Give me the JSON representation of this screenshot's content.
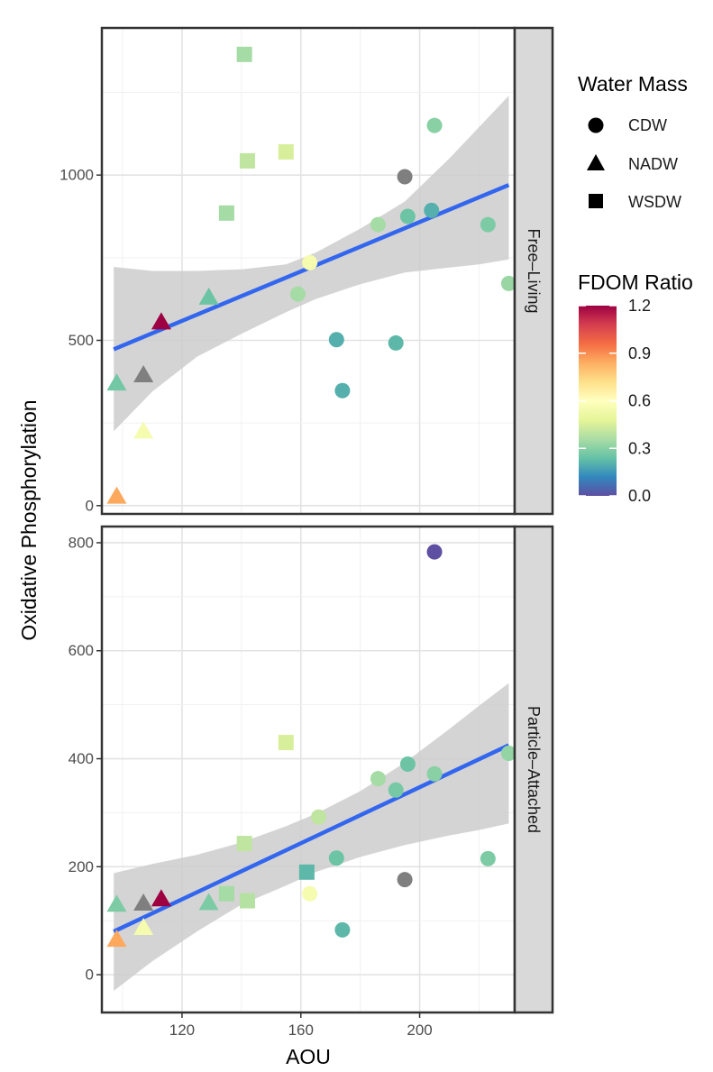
{
  "chart_data": {
    "type": "scatter",
    "xlabel": "AOU",
    "ylabel": "Oxidative Phosphorylation",
    "xlim": [
      93,
      232
    ],
    "x_ticks": [
      120,
      160,
      200
    ],
    "x_tick_labels": [
      "120",
      "160",
      "200"
    ],
    "fit_color": "#3366ee",
    "band_color": "#cccccc",
    "panels": [
      {
        "name": "Free–Living",
        "ylim": [
          -25,
          1445
        ],
        "y_ticks": [
          0,
          500,
          1000
        ],
        "y_tick_labels": [
          "0",
          "500",
          "1000"
        ],
        "fit": {
          "x": [
            97,
            230
          ],
          "y": [
            473,
            970
          ]
        },
        "band": {
          "x": [
            97,
            110,
            125,
            140,
            155,
            165,
            180,
            195,
            210,
            220,
            230
          ],
          "lower": [
            225,
            345,
            450,
            520,
            585,
            625,
            670,
            705,
            720,
            730,
            745
          ],
          "upper": [
            722,
            710,
            710,
            715,
            730,
            765,
            838,
            920,
            1050,
            1145,
            1240
          ]
        },
        "points": [
          {
            "x": 141,
            "y": 1365,
            "shape": "WSDW",
            "fdom": 0.35
          },
          {
            "x": 142,
            "y": 1043,
            "shape": "WSDW",
            "fdom": 0.4
          },
          {
            "x": 155,
            "y": 1070,
            "shape": "WSDW",
            "fdom": 0.45
          },
          {
            "x": 135,
            "y": 885,
            "shape": "WSDW",
            "fdom": 0.35
          },
          {
            "x": 205,
            "y": 1150,
            "shape": "CDW",
            "fdom": 0.3
          },
          {
            "x": 195,
            "y": 995,
            "shape": "CDW",
            "fdom": null
          },
          {
            "x": 204,
            "y": 893,
            "shape": "CDW",
            "fdom": 0.2
          },
          {
            "x": 196,
            "y": 875,
            "shape": "CDW",
            "fdom": 0.25
          },
          {
            "x": 186,
            "y": 850,
            "shape": "CDW",
            "fdom": 0.35
          },
          {
            "x": 223,
            "y": 850,
            "shape": "CDW",
            "fdom": 0.28
          },
          {
            "x": 230,
            "y": 672,
            "shape": "CDW",
            "fdom": 0.33
          },
          {
            "x": 163,
            "y": 735,
            "shape": "CDW",
            "fdom": 0.55
          },
          {
            "x": 159,
            "y": 640,
            "shape": "CDW",
            "fdom": 0.35
          },
          {
            "x": 172,
            "y": 502,
            "shape": "CDW",
            "fdom": 0.2
          },
          {
            "x": 192,
            "y": 492,
            "shape": "CDW",
            "fdom": 0.22
          },
          {
            "x": 174,
            "y": 348,
            "shape": "CDW",
            "fdom": 0.2
          },
          {
            "x": 129,
            "y": 630,
            "shape": "NADW",
            "fdom": 0.25
          },
          {
            "x": 113,
            "y": 555,
            "shape": "NADW",
            "fdom": 1.2
          },
          {
            "x": 107,
            "y": 395,
            "shape": "NADW",
            "fdom": null
          },
          {
            "x": 98,
            "y": 370,
            "shape": "NADW",
            "fdom": 0.26
          },
          {
            "x": 107,
            "y": 225,
            "shape": "NADW",
            "fdom": 0.55
          },
          {
            "x": 98,
            "y": 28,
            "shape": "NADW",
            "fdom": 0.85
          }
        ]
      },
      {
        "name": "Particle–Attached",
        "ylim": [
          -70,
          830
        ],
        "y_ticks": [
          0,
          200,
          400,
          600,
          800
        ],
        "y_tick_labels": [
          "0",
          "200",
          "400",
          "600",
          "800"
        ],
        "fit": {
          "x": [
            97,
            230
          ],
          "y": [
            80,
            425
          ]
        },
        "band": {
          "x": [
            97,
            110,
            125,
            140,
            155,
            165,
            180,
            195,
            210,
            220,
            230
          ],
          "lower": [
            -30,
            25,
            80,
            130,
            165,
            190,
            218,
            240,
            258,
            268,
            280
          ],
          "upper": [
            188,
            205,
            222,
            245,
            275,
            298,
            340,
            393,
            455,
            498,
            540
          ]
        },
        "points": [
          {
            "x": 205,
            "y": 783,
            "shape": "CDW",
            "fdom": 0.0
          },
          {
            "x": 155,
            "y": 430,
            "shape": "WSDW",
            "fdom": 0.45
          },
          {
            "x": 230,
            "y": 410,
            "shape": "CDW",
            "fdom": 0.32
          },
          {
            "x": 196,
            "y": 390,
            "shape": "CDW",
            "fdom": 0.25
          },
          {
            "x": 205,
            "y": 372,
            "shape": "CDW",
            "fdom": 0.3
          },
          {
            "x": 186,
            "y": 363,
            "shape": "CDW",
            "fdom": 0.35
          },
          {
            "x": 192,
            "y": 342,
            "shape": "CDW",
            "fdom": 0.27
          },
          {
            "x": 166,
            "y": 292,
            "shape": "CDW",
            "fdom": 0.4
          },
          {
            "x": 141,
            "y": 243,
            "shape": "WSDW",
            "fdom": 0.4
          },
          {
            "x": 172,
            "y": 216,
            "shape": "CDW",
            "fdom": 0.25
          },
          {
            "x": 223,
            "y": 215,
            "shape": "CDW",
            "fdom": 0.28
          },
          {
            "x": 162,
            "y": 190,
            "shape": "WSDW",
            "fdom": 0.22
          },
          {
            "x": 195,
            "y": 176,
            "shape": "CDW",
            "fdom": null
          },
          {
            "x": 135,
            "y": 150,
            "shape": "WSDW",
            "fdom": 0.35
          },
          {
            "x": 163,
            "y": 150,
            "shape": "CDW",
            "fdom": 0.55
          },
          {
            "x": 142,
            "y": 137,
            "shape": "WSDW",
            "fdom": 0.38
          },
          {
            "x": 113,
            "y": 140,
            "shape": "NADW",
            "fdom": 1.2
          },
          {
            "x": 98,
            "y": 130,
            "shape": "NADW",
            "fdom": 0.28
          },
          {
            "x": 107,
            "y": 132,
            "shape": "NADW",
            "fdom": null
          },
          {
            "x": 129,
            "y": 133,
            "shape": "NADW",
            "fdom": 0.28
          },
          {
            "x": 107,
            "y": 87,
            "shape": "NADW",
            "fdom": 0.55
          },
          {
            "x": 174,
            "y": 83,
            "shape": "CDW",
            "fdom": 0.22
          },
          {
            "x": 98,
            "y": 65,
            "shape": "NADW",
            "fdom": 0.85
          }
        ]
      }
    ],
    "legend": {
      "shape_title": "Water Mass",
      "shapes": [
        "CDW",
        "NADW",
        "WSDW"
      ],
      "color_title": "FDOM Ratio",
      "color_range": [
        0.0,
        1.2
      ],
      "color_ticks": [
        1.2,
        0.9,
        0.6,
        0.3,
        0.0
      ],
      "color_tick_labels": [
        "1.2",
        "0.9",
        "0.6",
        "0.3",
        "0.0"
      ],
      "na_color": "#7f7f7f",
      "gradient_colors": [
        "#5e4fa2",
        "#3288bd",
        "#66c2a5",
        "#abdda4",
        "#e6f598",
        "#ffffbf",
        "#fee08b",
        "#fdae61",
        "#f46d43",
        "#d53e4f",
        "#9e0142"
      ],
      "position": "right"
    }
  }
}
